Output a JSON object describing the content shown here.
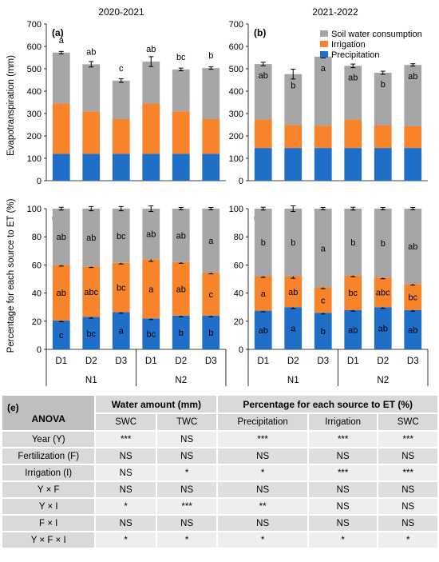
{
  "figure": {
    "col_titles": [
      "2020-2021",
      "2021-2022"
    ],
    "y_label_top": "Evapotranspiration (mm)",
    "y_label_bottom": "Percentage for each source to ET (%)",
    "x_categories": [
      "D1",
      "D2",
      "D3",
      "D1",
      "D2",
      "D3"
    ],
    "x_groups": [
      "N1",
      "N2"
    ],
    "legend": [
      "Soil water consumption",
      "Irrigation",
      "Precipitation"
    ],
    "colors": {
      "precipitation": "#1f6fc9",
      "irrigation": "#f7832a",
      "swc": "#a6a6a6"
    }
  },
  "chart_data": [
    {
      "panel": "(a)",
      "type": "bar",
      "stacked": true,
      "ylim": [
        0,
        700
      ],
      "yticks": [
        0,
        100,
        200,
        300,
        400,
        500,
        600,
        700
      ],
      "categories": [
        "D1",
        "D2",
        "D3",
        "D1",
        "D2",
        "D3"
      ],
      "series": [
        {
          "name": "Precipitation",
          "values": [
            120,
            120,
            120,
            120,
            120,
            120
          ]
        },
        {
          "name": "Irrigation",
          "values": [
            225,
            190,
            155,
            225,
            190,
            155
          ]
        },
        {
          "name": "Soil water consumption",
          "values": [
            227,
            210,
            172,
            187,
            187,
            228
          ]
        }
      ],
      "errors": [
        3,
        12,
        8,
        22,
        6,
        5
      ],
      "labels": [
        {
          "text": "a",
          "series": 2,
          "pos": "above"
        },
        {
          "text": "ab",
          "series": 2,
          "pos": "above"
        },
        {
          "text": "c",
          "series": 2,
          "pos": "above"
        },
        {
          "text": "ab",
          "series": 2,
          "pos": "above"
        },
        {
          "text": "bc",
          "series": 2,
          "pos": "above"
        },
        {
          "text": "b",
          "series": 2,
          "pos": "above"
        }
      ]
    },
    {
      "panel": "(b)",
      "type": "bar",
      "stacked": true,
      "ylim": [
        0,
        700
      ],
      "yticks": [
        0,
        100,
        200,
        300,
        400,
        500,
        600,
        700
      ],
      "categories": [
        "D1",
        "D2",
        "D3",
        "D1",
        "D2",
        "D3"
      ],
      "series": [
        {
          "name": "Precipitation",
          "values": [
            146,
            146,
            146,
            146,
            146,
            146
          ]
        },
        {
          "name": "Irrigation",
          "values": [
            127,
            102,
            100,
            127,
            102,
            98
          ]
        },
        {
          "name": "Soil water consumption",
          "values": [
            248,
            228,
            308,
            240,
            234,
            273
          ]
        }
      ],
      "errors": [
        8,
        22,
        6,
        8,
        7,
        3
      ],
      "labels": [
        {
          "text": "ab",
          "series": 2,
          "pos": "inside"
        },
        {
          "text": "b",
          "series": 2,
          "pos": "inside"
        },
        {
          "text": "a",
          "series": 2,
          "pos": "inside"
        },
        {
          "text": "ab",
          "series": 2,
          "pos": "inside"
        },
        {
          "text": "b",
          "series": 2,
          "pos": "inside"
        },
        {
          "text": "ab",
          "series": 2,
          "pos": "inside"
        }
      ]
    },
    {
      "panel": "(c)",
      "type": "bar",
      "stacked": true,
      "ylim": [
        0,
        100
      ],
      "yticks": [
        0,
        20,
        40,
        60,
        80,
        100
      ],
      "categories": [
        "D1",
        "D2",
        "D3",
        "D1",
        "D2",
        "D3"
      ],
      "series": [
        {
          "name": "Precipitation",
          "values": [
            20.5,
            23,
            26.5,
            22,
            24,
            24
          ]
        },
        {
          "name": "Irrigation",
          "values": [
            39.5,
            36,
            35,
            42,
            38,
            30.5
          ]
        },
        {
          "name": "Soil water consumption",
          "values": [
            40,
            41,
            38.5,
            36,
            38,
            45.5
          ]
        }
      ],
      "errors": [
        [
          0.3,
          0.5,
          1
        ],
        [
          0.3,
          0.5,
          1.5
        ],
        [
          0.3,
          0.5,
          1.5
        ],
        [
          0.6,
          1.5,
          2
        ],
        [
          0.5,
          0.5,
          0.5
        ],
        [
          0.3,
          0.3,
          0.5
        ]
      ],
      "labels": [
        [
          "c",
          "ab",
          "ab"
        ],
        [
          "bc",
          "abc",
          "ab"
        ],
        [
          "a",
          "bc",
          "bc"
        ],
        [
          "bc",
          "a",
          "ab"
        ],
        [
          "b",
          "ab",
          "ab"
        ],
        [
          "b",
          "c",
          "a"
        ]
      ]
    },
    {
      "panel": "(d)",
      "type": "bar",
      "stacked": true,
      "ylim": [
        0,
        100
      ],
      "yticks": [
        0,
        20,
        40,
        60,
        80,
        100
      ],
      "categories": [
        "D1",
        "D2",
        "D3",
        "D1",
        "D2",
        "D3"
      ],
      "series": [
        {
          "name": "Precipitation",
          "values": [
            27.5,
            30,
            26,
            28,
            30,
            28
          ]
        },
        {
          "name": "Irrigation",
          "values": [
            24.5,
            22,
            18,
            24.5,
            21,
            18.5
          ]
        },
        {
          "name": "Soil water consumption",
          "values": [
            48,
            48,
            56,
            47.5,
            49,
            53.5
          ]
        }
      ],
      "errors": [
        [
          0.5,
          0.5,
          1
        ],
        [
          1,
          1.5,
          2
        ],
        [
          0.5,
          0.5,
          0.5
        ],
        [
          0.5,
          0.5,
          1
        ],
        [
          0.5,
          0.5,
          0.5
        ],
        [
          0.5,
          0.5,
          0.3
        ]
      ],
      "labels": [
        [
          "ab",
          "a",
          "b"
        ],
        [
          "a",
          "ab",
          "b"
        ],
        [
          "b",
          "c",
          "a"
        ],
        [
          "ab",
          "bc",
          "b"
        ],
        [
          "ab",
          "abc",
          "b"
        ],
        [
          "ab",
          "bc",
          "ab"
        ]
      ]
    }
  ],
  "anova": {
    "panel_label": "(e)",
    "corner": "ANOVA",
    "group1": "Water amount (mm)",
    "group2": "Percentage for each source to ET (%)",
    "subheaders": [
      "SWC",
      "TWC",
      "Precipitation",
      "Irrigation",
      "SWC"
    ],
    "rows": [
      {
        "factor": "Year (Y)",
        "values": [
          "***",
          "NS",
          "***",
          "***",
          "***"
        ]
      },
      {
        "factor": "Fertilization (F)",
        "values": [
          "NS",
          "NS",
          "NS",
          "NS",
          "NS"
        ]
      },
      {
        "factor": "Irrigation (I)",
        "values": [
          "NS",
          "*",
          "*",
          "***",
          "***"
        ]
      },
      {
        "factor": "Y × F",
        "values": [
          "NS",
          "NS",
          "NS",
          "NS",
          "NS"
        ]
      },
      {
        "factor": "Y × I",
        "values": [
          "*",
          "***",
          "**",
          "NS",
          "NS"
        ]
      },
      {
        "factor": "F × I",
        "values": [
          "NS",
          "NS",
          "NS",
          "NS",
          "NS"
        ]
      },
      {
        "factor": "Y × F × I",
        "values": [
          "*",
          "*",
          "*",
          "*",
          "*"
        ]
      }
    ]
  }
}
